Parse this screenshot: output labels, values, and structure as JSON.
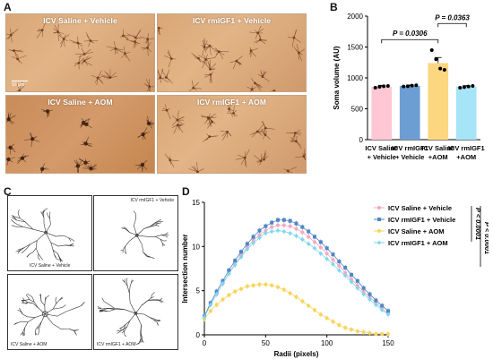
{
  "panels": {
    "a": "A",
    "b": "B",
    "c": "C",
    "d": "D"
  },
  "micrographs": [
    {
      "label": "ICV Saline + Vehicle",
      "scale": "50 μm"
    },
    {
      "label": "ICV rmIGF1 + Vehicle",
      "scale": ""
    },
    {
      "label": "ICV Saline + AOM",
      "scale": ""
    },
    {
      "label": "ICV rmIGF1 + AOM",
      "scale": ""
    }
  ],
  "tracings": [
    {
      "label": "ICV Saline + Vehicle"
    },
    {
      "label": "ICV rmIGF1 + Vehicle"
    },
    {
      "label": "ICV Saline + AOM"
    },
    {
      "label": "ICV rmIGF1 + AOM"
    }
  ],
  "chart_data": [
    {
      "type": "bar",
      "ylabel": "Soma volume (AU)",
      "ylim": [
        0,
        2000
      ],
      "yticks": [
        0,
        500,
        1000,
        1500,
        2000
      ],
      "categories": [
        "ICV Saline\n+ Vehicle",
        "ICV rmIGF1\n+ Vehicle",
        "ICV Saline\n+AOM",
        "ICV rmIGF1\n+AOM"
      ],
      "category_lines": [
        [
          "ICV Saline",
          "+ Vehicle"
        ],
        [
          "ICV rmIGF1",
          "+ Vehicle"
        ],
        [
          "ICV Saline",
          "+AOM"
        ],
        [
          "ICV rmIGF1",
          "+AOM"
        ]
      ],
      "values": [
        860,
        870,
        1240,
        860
      ],
      "errors": [
        20,
        15,
        90,
        15
      ],
      "points": [
        [
          840,
          855,
          865,
          870
        ],
        [
          860,
          865,
          875,
          880
        ],
        [
          1450,
          1300,
          1150,
          1130
        ],
        [
          840,
          850,
          860,
          870
        ]
      ],
      "colors": [
        "#ffc6d3",
        "#6d9ed3",
        "#fcd77f",
        "#a6e4f7"
      ],
      "annotations": [
        {
          "text": "P = 0.0306",
          "from": 0,
          "to": 2
        },
        {
          "text": "P = 0.0363",
          "from": 2,
          "to": 3
        }
      ]
    },
    {
      "type": "line",
      "xlabel": "Radii (pixels)",
      "ylabel": "Intersection number",
      "xlim": [
        0,
        150
      ],
      "ylim": [
        0,
        15
      ],
      "xticks": [
        0,
        50,
        100,
        150
      ],
      "yticks": [
        0,
        5,
        10,
        15
      ],
      "x": [
        0,
        5,
        10,
        15,
        20,
        25,
        30,
        35,
        40,
        45,
        50,
        55,
        60,
        65,
        70,
        75,
        80,
        85,
        90,
        95,
        100,
        105,
        110,
        115,
        120,
        125,
        130,
        135,
        140,
        145,
        150
      ],
      "series": [
        {
          "name": "ICV Saline + Vehicle",
          "color": "#f4a9c0",
          "marker": "circle",
          "values": [
            2.0,
            3.4,
            4.6,
            5.8,
            7.0,
            8.0,
            9.0,
            9.9,
            10.7,
            11.3,
            11.8,
            12.2,
            12.4,
            12.4,
            12.3,
            12.0,
            11.6,
            11.1,
            10.5,
            9.9,
            9.2,
            8.5,
            7.8,
            7.0,
            6.3,
            5.6,
            4.9,
            4.3,
            3.6,
            3.0,
            2.4
          ]
        },
        {
          "name": "ICV rmIGF1 + Vehicle",
          "color": "#4f86c6",
          "marker": "square",
          "values": [
            2.1,
            3.6,
            4.9,
            6.1,
            7.3,
            8.4,
            9.4,
            10.3,
            11.1,
            11.8,
            12.3,
            12.7,
            13.0,
            13.0,
            12.9,
            12.6,
            12.2,
            11.7,
            11.1,
            10.5,
            9.8,
            9.1,
            8.3,
            7.6,
            6.8,
            6.1,
            5.3,
            4.6,
            3.9,
            3.3,
            2.7
          ]
        },
        {
          "name": "ICV Saline + AOM",
          "color": "#f7d45c",
          "marker": "circle",
          "values": [
            1.8,
            2.7,
            3.4,
            4.0,
            4.5,
            4.9,
            5.2,
            5.5,
            5.6,
            5.7,
            5.7,
            5.6,
            5.4,
            5.1,
            4.7,
            4.3,
            3.8,
            3.3,
            2.8,
            2.3,
            1.9,
            1.5,
            1.1,
            0.8,
            0.6,
            0.4,
            0.3,
            0.2,
            0.1,
            0.1,
            0.1
          ]
        },
        {
          "name": "ICV rmIGF1 + AOM",
          "color": "#7fd6f0",
          "marker": "diamond",
          "values": [
            2.0,
            3.4,
            4.6,
            5.8,
            6.9,
            7.9,
            8.8,
            9.7,
            10.4,
            11.0,
            11.5,
            11.7,
            11.8,
            11.7,
            11.5,
            11.2,
            10.8,
            10.3,
            9.8,
            9.2,
            8.6,
            8.0,
            7.3,
            6.7,
            6.0,
            5.3,
            4.6,
            4.0,
            3.4,
            2.8,
            2.3
          ]
        }
      ],
      "annotations": [
        {
          "text": "P < 0.0001"
        },
        {
          "text": "P < 0.0001"
        }
      ]
    }
  ]
}
